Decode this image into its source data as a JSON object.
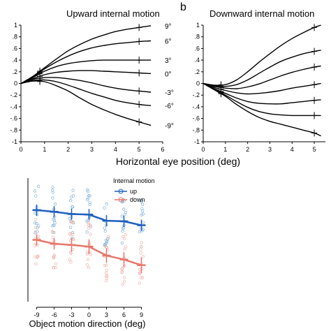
{
  "panel_letter_b": "b",
  "shared_xlabel": "Horizontal eye position (deg)",
  "chart_data": [
    {
      "type": "line",
      "title": "Upward internal motion",
      "xlabel": "",
      "ylabel": "",
      "xlim": [
        0,
        6
      ],
      "ylim": [
        -1,
        1
      ],
      "xticks": [
        0,
        1,
        2,
        3,
        4,
        5,
        6
      ],
      "yticks": [
        -1,
        -0.8,
        -0.6,
        -0.4,
        -0.2,
        0,
        0.2,
        0.4,
        0.6,
        0.8,
        1
      ],
      "x": [
        0,
        0.5,
        1,
        1.5,
        2,
        2.5,
        3,
        3.5,
        4,
        4.5,
        5,
        5.5
      ],
      "series": [
        {
          "name": "9°",
          "values": [
            0,
            0.12,
            0.27,
            0.42,
            0.56,
            0.67,
            0.76,
            0.83,
            0.89,
            0.93,
            0.96,
            0.99
          ]
        },
        {
          "name": "6°",
          "values": [
            0,
            0.11,
            0.25,
            0.37,
            0.47,
            0.55,
            0.61,
            0.65,
            0.68,
            0.7,
            0.72,
            0.73
          ]
        },
        {
          "name": "3°",
          "values": [
            0,
            0.1,
            0.21,
            0.29,
            0.34,
            0.37,
            0.39,
            0.4,
            0.4,
            0.4,
            0.4,
            0.4
          ]
        },
        {
          "name": "0°",
          "values": [
            0,
            0.08,
            0.15,
            0.19,
            0.21,
            0.22,
            0.22,
            0.21,
            0.2,
            0.19,
            0.18,
            0.17
          ]
        },
        {
          "name": "-3°",
          "values": [
            0,
            0.07,
            0.1,
            0.1,
            0.08,
            0.05,
            0.01,
            -0.04,
            -0.08,
            -0.11,
            -0.13,
            -0.15
          ]
        },
        {
          "name": "-6°",
          "values": [
            0,
            0.05,
            0.06,
            0.03,
            -0.03,
            -0.1,
            -0.17,
            -0.23,
            -0.29,
            -0.33,
            -0.36,
            -0.38
          ]
        },
        {
          "name": "-9°",
          "values": [
            0,
            0.04,
            0.03,
            -0.04,
            -0.13,
            -0.25,
            -0.36,
            -0.45,
            -0.53,
            -0.6,
            -0.66,
            -0.72
          ]
        }
      ],
      "markers_x": [
        0.8,
        5
      ]
    },
    {
      "type": "line",
      "title": "Downward internal motion",
      "xlabel": "",
      "ylabel": "",
      "xlim": [
        0,
        5.5
      ],
      "ylim": [
        -1,
        1
      ],
      "xticks": [
        0,
        1,
        2,
        3,
        4,
        5
      ],
      "yticks": [
        -1,
        -0.8,
        -0.6,
        -0.4,
        -0.2,
        0,
        0.2,
        0.4,
        0.6,
        0.8,
        1
      ],
      "x": [
        0,
        0.5,
        1,
        1.5,
        2,
        2.5,
        3,
        3.5,
        4,
        4.5,
        5,
        5.3
      ],
      "series": [
        {
          "name": "",
          "values": [
            0,
            -0.03,
            -0.02,
            0.06,
            0.2,
            0.36,
            0.51,
            0.65,
            0.77,
            0.87,
            0.96,
            1.0
          ]
        },
        {
          "name": "",
          "values": [
            0,
            -0.04,
            -0.05,
            -0.02,
            0.06,
            0.17,
            0.28,
            0.38,
            0.45,
            0.51,
            0.55,
            0.57
          ]
        },
        {
          "name": "",
          "values": [
            0,
            -0.05,
            -0.08,
            -0.09,
            -0.06,
            -0.01,
            0.06,
            0.13,
            0.19,
            0.24,
            0.28,
            0.3
          ]
        },
        {
          "name": "",
          "values": [
            0,
            -0.07,
            -0.12,
            -0.16,
            -0.18,
            -0.17,
            -0.15,
            -0.12,
            -0.08,
            -0.05,
            -0.02,
            0.0
          ]
        },
        {
          "name": "",
          "values": [
            0,
            -0.09,
            -0.17,
            -0.25,
            -0.31,
            -0.34,
            -0.35,
            -0.35,
            -0.33,
            -0.31,
            -0.29,
            -0.28
          ]
        },
        {
          "name": "",
          "values": [
            0,
            -0.1,
            -0.2,
            -0.31,
            -0.41,
            -0.48,
            -0.52,
            -0.54,
            -0.55,
            -0.55,
            -0.55,
            -0.55
          ]
        },
        {
          "name": "",
          "values": [
            0,
            -0.11,
            -0.22,
            -0.36,
            -0.48,
            -0.58,
            -0.65,
            -0.7,
            -0.75,
            -0.8,
            -0.85,
            -0.9
          ]
        }
      ],
      "markers_x": [
        0.8,
        5
      ]
    },
    {
      "type": "scatter",
      "title": "",
      "xlabel": "Object motion direction (deg)",
      "ylabel": "",
      "categories": [
        -9,
        -6,
        -3,
        0,
        3,
        6,
        9
      ],
      "xlim": [
        -10.5,
        10.5
      ],
      "ylim": [
        -12,
        10
      ],
      "yticks": [
        -10,
        -5,
        0,
        5,
        10
      ],
      "legend": {
        "title": "Internal motion",
        "placement": "top-left"
      },
      "series": [
        {
          "name": "up",
          "color": "#1f5fbf",
          "light_color": "#7fb0d8",
          "values": [
            4.3,
            4.0,
            3.6,
            3.5,
            2.4,
            2.3,
            1.6
          ],
          "errors": [
            1.0,
            1.0,
            1.0,
            1.0,
            1.0,
            1.0,
            1.0
          ]
        },
        {
          "name": "down",
          "color": "#e8766a",
          "light_color": "#f0b0a8",
          "values": [
            -1.0,
            -1.7,
            -1.9,
            -2.2,
            -3.8,
            -4.5,
            -5.5
          ],
          "errors": [
            1.0,
            1.0,
            1.2,
            1.3,
            1.3,
            1.3,
            1.4
          ]
        }
      ]
    }
  ]
}
